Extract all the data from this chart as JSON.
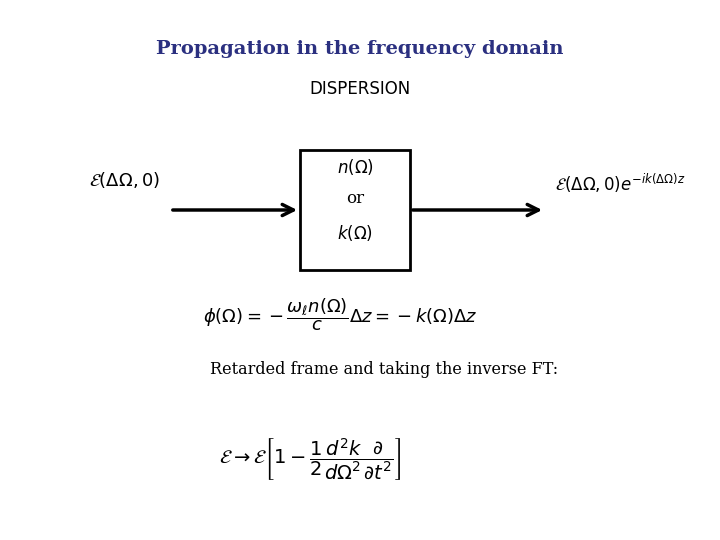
{
  "title": "Propagation in the frequency domain",
  "title_color": "#2B3080",
  "title_fontsize": 14,
  "bg_color": "#ffffff",
  "dispersion_label": "DISPERSION",
  "retarded_text": "Retarded frame and taking the inverse FT:"
}
